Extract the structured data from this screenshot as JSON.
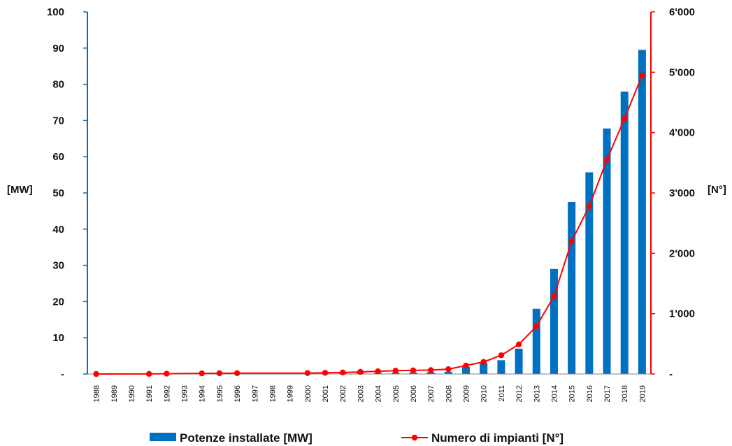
{
  "chart_data": {
    "type": "bar+line",
    "categories": [
      "1988",
      "1989",
      "1990",
      "1991",
      "1992",
      "1993",
      "1994",
      "1995",
      "1996",
      "1997",
      "1998",
      "1999",
      "2000",
      "2001",
      "2002",
      "2003",
      "2004",
      "2005",
      "2006",
      "2007",
      "2008",
      "2009",
      "2010",
      "2011",
      "2012",
      "2013",
      "2014",
      "2015",
      "2016",
      "2017",
      "2018",
      "2019"
    ],
    "series": [
      {
        "name": "Potenze installate [MW]",
        "type": "bar",
        "axis": "left",
        "color": "#0070C0",
        "values": [
          0,
          0,
          0,
          0.1,
          0.1,
          0,
          0.15,
          0.15,
          0.15,
          0,
          0,
          0,
          0.15,
          0.2,
          0.25,
          0.3,
          0.35,
          0.4,
          0.45,
          0.5,
          0.6,
          2.0,
          3.0,
          3.8,
          7.0,
          18.0,
          29.0,
          47.5,
          55.7,
          67.8,
          78.0,
          89.5
        ]
      },
      {
        "name": "Numero di impianti [N°]",
        "type": "line",
        "axis": "right",
        "color": "#FF0000",
        "x": [
          "1988",
          "1991",
          "1992",
          "1994",
          "1995",
          "1996",
          "2000",
          "2001",
          "2002",
          "2003",
          "2004",
          "2005",
          "2006",
          "2007",
          "2008",
          "2009",
          "2010",
          "2011",
          "2012",
          "2013",
          "2014",
          "2015",
          "2016",
          "2017",
          "2018",
          "2019"
        ],
        "values": [
          0,
          2,
          5,
          10,
          12,
          14,
          15,
          20,
          25,
          35,
          45,
          55,
          60,
          65,
          80,
          140,
          200,
          310,
          490,
          790,
          1290,
          2200,
          2780,
          3550,
          4230,
          4950
        ]
      }
    ],
    "y_left": {
      "label": "[MW]",
      "ylim": [
        0,
        100
      ],
      "ticks": [
        "-",
        "10",
        "20",
        "30",
        "40",
        "50",
        "60",
        "70",
        "80",
        "90",
        "100"
      ],
      "color": "#0070C0"
    },
    "y_right": {
      "label": "[N°]",
      "ylim": [
        0,
        6000
      ],
      "ticks": [
        "-",
        "1'000",
        "2'000",
        "3'000",
        "4'000",
        "5'000",
        "6'000"
      ],
      "color": "#FF0000"
    },
    "grid": false,
    "legend": {
      "position": "bottom",
      "items": [
        "Potenze installate [MW]",
        "Numero di impianti [N°]"
      ]
    }
  }
}
